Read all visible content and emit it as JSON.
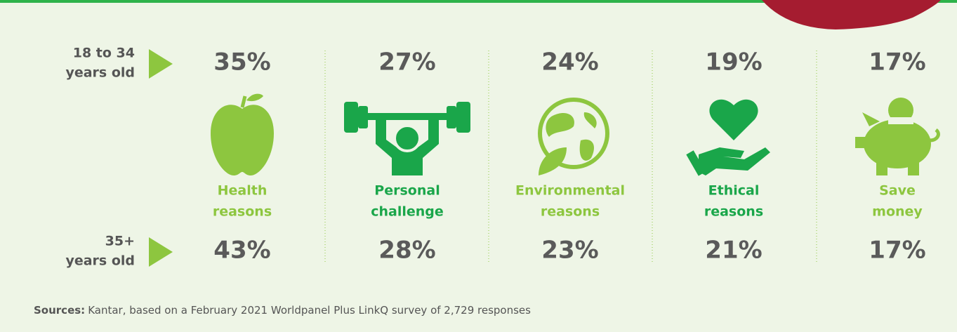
{
  "rows": [
    {
      "label": [
        "18 to 34",
        "years old"
      ]
    },
    {
      "label": [
        "35+",
        "years old"
      ]
    }
  ],
  "columns": [
    {
      "label": [
        "Health",
        "reasons"
      ],
      "top": "35%",
      "bottom": "43%"
    },
    {
      "label": [
        "Personal",
        "challenge"
      ],
      "top": "27%",
      "bottom": "28%"
    },
    {
      "label": [
        "Environmental",
        "reasons"
      ],
      "top": "24%",
      "bottom": "23%"
    },
    {
      "label": [
        "Ethical",
        "reasons"
      ],
      "top": "19%",
      "bottom": "21%"
    },
    {
      "label": [
        "Save",
        "money"
      ],
      "top": "17%",
      "bottom": "17%"
    }
  ],
  "source": {
    "label": "Sources:",
    "text": "Kantar, based on a February 2021 Worldpanel Plus LinkQ survey of 2,729 responses"
  }
}
